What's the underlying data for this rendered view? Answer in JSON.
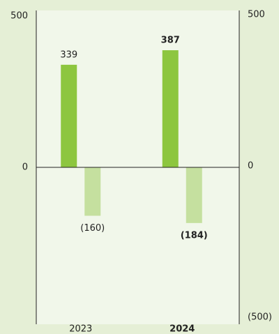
{
  "chart_data": {
    "type": "bar",
    "categories": [
      "2023",
      "2024"
    ],
    "series": [
      {
        "name": null,
        "color": "#8dc63f",
        "values": [
          339,
          387
        ]
      },
      {
        "name": null,
        "color": "#c5e09f",
        "values": [
          -160,
          -184
        ],
        "value_labels": [
          "(160)",
          "(184)"
        ]
      }
    ],
    "ylim": [
      -500,
      500
    ],
    "yticks": [
      0,
      500
    ],
    "y2lim": [
      -500,
      500
    ],
    "y2ticks": [
      {
        "value": -500,
        "label": "(500)"
      },
      0,
      500
    ],
    "grid": false
  }
}
